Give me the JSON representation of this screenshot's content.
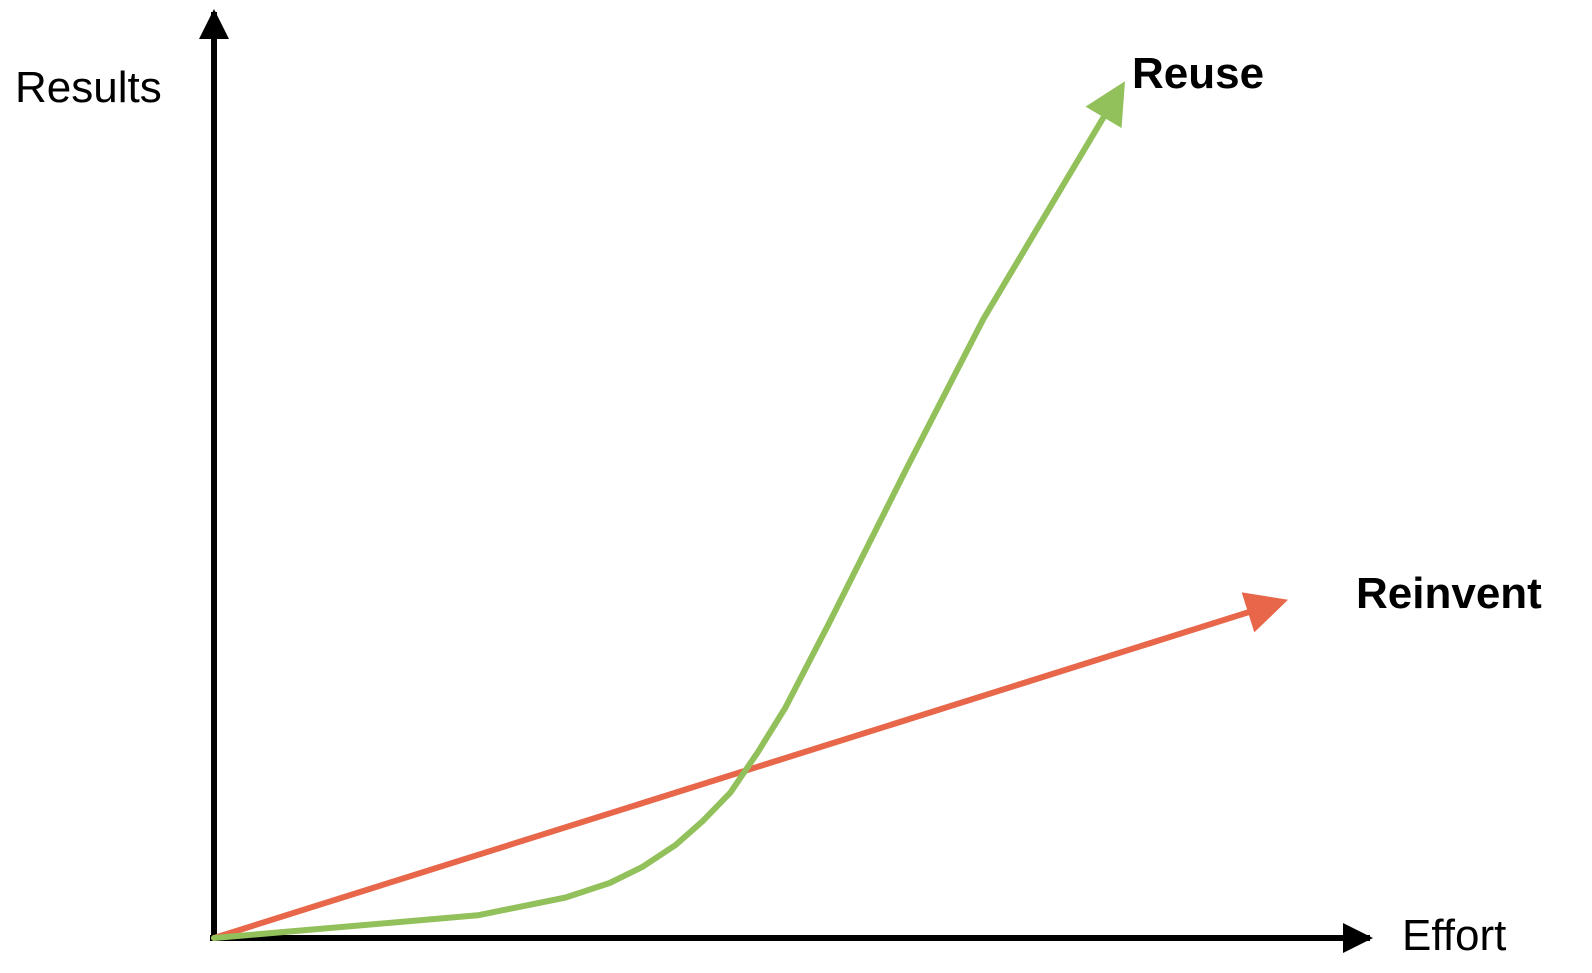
{
  "chart_data": {
    "type": "line",
    "title": "",
    "xlabel": "Effort",
    "ylabel": "Results",
    "xlim": [
      0,
      100
    ],
    "ylim": [
      0,
      100
    ],
    "grid": false,
    "legend": "none",
    "series": [
      {
        "name": "Reuse",
        "color": "#92c05a",
        "x": [
          0,
          24,
          32,
          36,
          39,
          42,
          44.5,
          47,
          49.5,
          52,
          56,
          63,
          70,
          82.5
        ],
        "y": [
          0,
          2.8,
          5,
          6.8,
          8.8,
          11.5,
          14.5,
          18,
          23,
          28.5,
          39,
          58,
          76.5,
          105
        ]
      },
      {
        "name": "Reinvent",
        "color": "#e8664a",
        "x": [
          0,
          97
        ],
        "y": [
          0,
          41.5
        ]
      }
    ]
  }
}
